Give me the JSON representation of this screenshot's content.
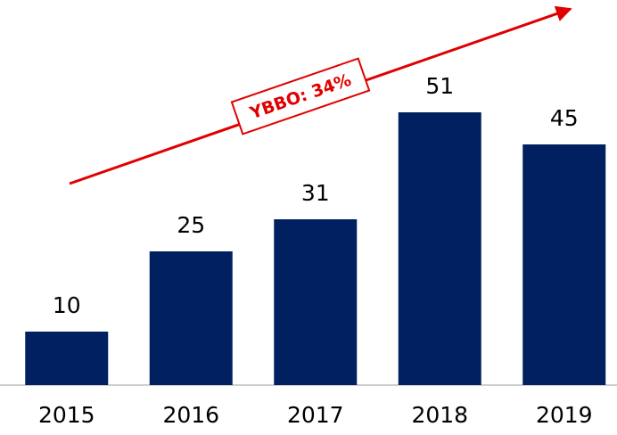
{
  "chart_data": {
    "type": "bar",
    "categories": [
      "2015",
      "2016",
      "2017",
      "2018",
      "2019"
    ],
    "values": [
      10,
      25,
      31,
      51,
      45
    ],
    "color": "#002060",
    "ylim": [
      0,
      72
    ],
    "annotation": "YBBO: 34%",
    "annotation_color": "#e00000"
  }
}
